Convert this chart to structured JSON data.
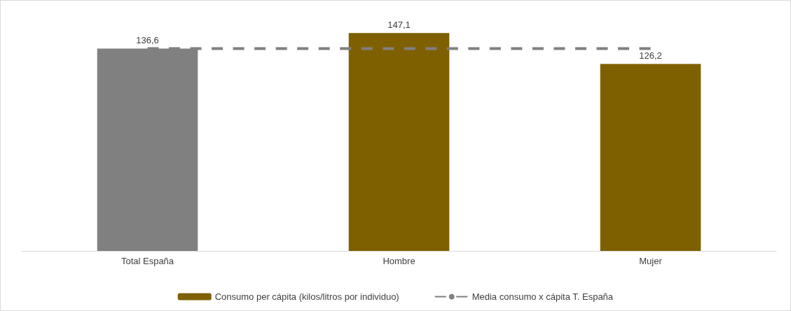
{
  "chart_data": {
    "type": "bar",
    "categories": [
      "Total España",
      "Hombre",
      "Mujer"
    ],
    "series": [
      {
        "name": "Consumo per cápita (kilos/litros por individuo)",
        "color": "#7f6000",
        "colors": [
          "#808080",
          "#7f6000",
          "#7f6000"
        ],
        "values": [
          136.6,
          147.1,
          126.2
        ],
        "value_labels": [
          "136,6",
          "147,1",
          "126,2"
        ]
      },
      {
        "type": "line",
        "name": "Media consumo x cápita T. España",
        "color": "#808080",
        "values": [
          136.6,
          136.6,
          136.6
        ],
        "line_style": "dashed",
        "marker": "none"
      }
    ],
    "grid": false,
    "legend": "bottom"
  }
}
